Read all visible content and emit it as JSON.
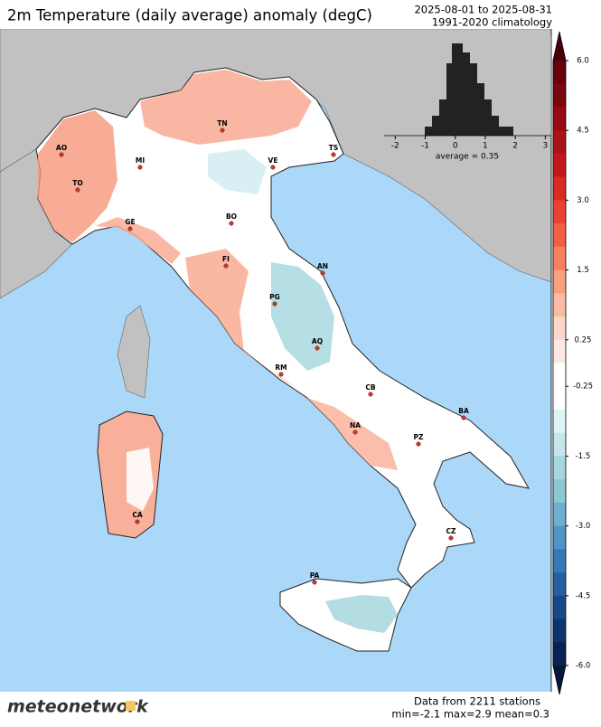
{
  "header": {
    "title": "2m Temperature (daily average) anomaly (degC)",
    "period": "2025-08-01 to 2025-08-31",
    "climatology": "1991-2020 climatology"
  },
  "colorbar": {
    "boundaries": [
      6,
      5.5,
      5,
      4.5,
      4,
      3.5,
      3,
      2.5,
      2,
      1.5,
      1,
      0.5,
      0.25,
      0,
      -0.25,
      -0.5,
      -1,
      -1.5,
      -2,
      -2.5,
      -3,
      -3.5,
      -4,
      -4.5,
      -5,
      -5.5,
      -6
    ],
    "colors": [
      "#67000d",
      "#7d0510",
      "#960b13",
      "#ad1218",
      "#c4171c",
      "#d92a24",
      "#ea4132",
      "#f35f45",
      "#f7805f",
      "#f9a07f",
      "#fbbba2",
      "#fcd6c7",
      "#fde9e3",
      "#ffffff",
      "#ffffff",
      "#e0f3f7",
      "#c4e6ec",
      "#a6d6de",
      "#8cc7d2",
      "#6cb0cf",
      "#4f95c6",
      "#3579b8",
      "#2460a3",
      "#17498a",
      "#0e346e",
      "#082252"
    ],
    "top_color": "#4a0008",
    "bottom_color": "#06173a",
    "ticks": [
      {
        "value": 6,
        "label": "6.0"
      },
      {
        "value": 4.5,
        "label": "4.5"
      },
      {
        "value": 3,
        "label": "3.0"
      },
      {
        "value": 1.5,
        "label": "1.5"
      },
      {
        "value": 0.25,
        "label": "0.25"
      },
      {
        "value": -0.25,
        "label": "-0.25"
      },
      {
        "value": -1.5,
        "label": "-1.5"
      },
      {
        "value": -3,
        "label": "-3.0"
      },
      {
        "value": -4.5,
        "label": "-4.5"
      },
      {
        "value": -6,
        "label": "-6.0"
      }
    ]
  },
  "histogram": {
    "xlim": [
      -2.4,
      3.2
    ],
    "xticks": [
      -2,
      -1,
      0,
      1,
      2,
      3
    ],
    "average_label": "average = 0.35"
  },
  "cities": [
    "AO",
    "TO",
    "MI",
    "GE",
    "TN",
    "VE",
    "TS",
    "BO",
    "FI",
    "AN",
    "PG",
    "AQ",
    "RM",
    "CB",
    "BA",
    "NA",
    "PZ",
    "CA",
    "CZ",
    "PA"
  ],
  "footer": {
    "logo": "meteonetwork",
    "stations": "Data from 2211 stations",
    "stats": "min=-2.1 max=2.9 mean=0.3"
  }
}
